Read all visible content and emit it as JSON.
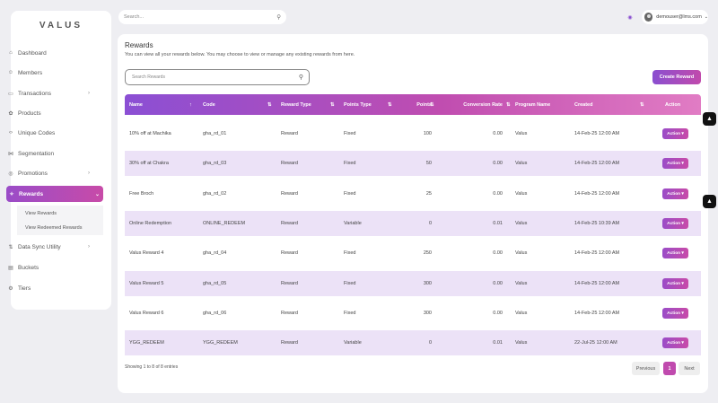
{
  "app": {
    "logo": "VALUS"
  },
  "sidebar": {
    "items": [
      {
        "label": "Dashboard",
        "icon": "⌂",
        "has_chevron": false
      },
      {
        "label": "Members",
        "icon": "☺",
        "has_chevron": false
      },
      {
        "label": "Transactions",
        "icon": "▭",
        "has_chevron": true
      },
      {
        "label": "Products",
        "icon": "✿",
        "has_chevron": false
      },
      {
        "label": "Unique Codes",
        "icon": "‹›",
        "has_chevron": false
      },
      {
        "label": "Segmentation",
        "icon": "⋈",
        "has_chevron": false
      },
      {
        "label": "Promotions",
        "icon": "◎",
        "has_chevron": true
      },
      {
        "label": "Rewards",
        "icon": "✧",
        "has_chevron": true,
        "active": true
      },
      {
        "label": "Data Sync Utility",
        "icon": "⇅",
        "has_chevron": true
      },
      {
        "label": "Buckets",
        "icon": "▤",
        "has_chevron": false
      },
      {
        "label": "Tiers",
        "icon": "⚙",
        "has_chevron": false
      }
    ],
    "sub_items": [
      "View Rewards",
      "View Redeemed Rewards"
    ]
  },
  "topbar": {
    "search_placeholder": "Search...",
    "user_email": "demouser@lms.com"
  },
  "page": {
    "title": "Rewards",
    "subtitle": "You can view all your rewards below. You may choose to view or manage any existing rewards from here.",
    "search_placeholder": "Search Rewards",
    "create_label": "Create Reward"
  },
  "table": {
    "columns": [
      "Name",
      "Code",
      "Reward Type",
      "Points Type",
      "Points",
      "Conversion Rate",
      "Program Name",
      "Created",
      "Action"
    ],
    "rows": [
      [
        "10% off at Machika",
        "gha_rd_01",
        "Reward",
        "Fixed",
        "100",
        "0.00",
        "Valus",
        "14-Feb-25 12:00 AM"
      ],
      [
        "30% off at Chakra",
        "gha_rd_03",
        "Reward",
        "Fixed",
        "50",
        "0.00",
        "Valus",
        "14-Feb-25 12:00 AM"
      ],
      [
        "Free Broch",
        "gha_rd_02",
        "Reward",
        "Fixed",
        "25",
        "0.00",
        "Valus",
        "14-Feb-25 12:00 AM"
      ],
      [
        "Online Redemption",
        "ONLINE_REDEEM",
        "Reward",
        "Variable",
        "0",
        "0.01",
        "Valus",
        "14-Feb-25 10:39 AM"
      ],
      [
        "Valus Reward 4",
        "gha_rd_04",
        "Reward",
        "Fixed",
        "250",
        "0.00",
        "Valus",
        "14-Feb-25 12:00 AM"
      ],
      [
        "Valus Reward 5",
        "gha_rd_05",
        "Reward",
        "Fixed",
        "300",
        "0.00",
        "Valus",
        "14-Feb-25 12:00 AM"
      ],
      [
        "Valus Reward 6",
        "gha_rd_06",
        "Reward",
        "Fixed",
        "300",
        "0.00",
        "Valus",
        "14-Feb-25 12:00 AM"
      ],
      [
        "YGG_REDEEM",
        "YGG_REDEEM",
        "Reward",
        "Variable",
        "0",
        "0.01",
        "Valus",
        "22-Jul-25 12:00 AM"
      ]
    ],
    "action_label": "Action ▾"
  },
  "footer": {
    "entries_text": "Showing 1 to 8 of 8 entries",
    "prev_label": "Previous",
    "page_number": "1",
    "next_label": "Next"
  },
  "colors": {
    "accent_start": "#8b4fd4",
    "accent_end": "#c84ba8",
    "row_alt": "#ece2f7"
  }
}
